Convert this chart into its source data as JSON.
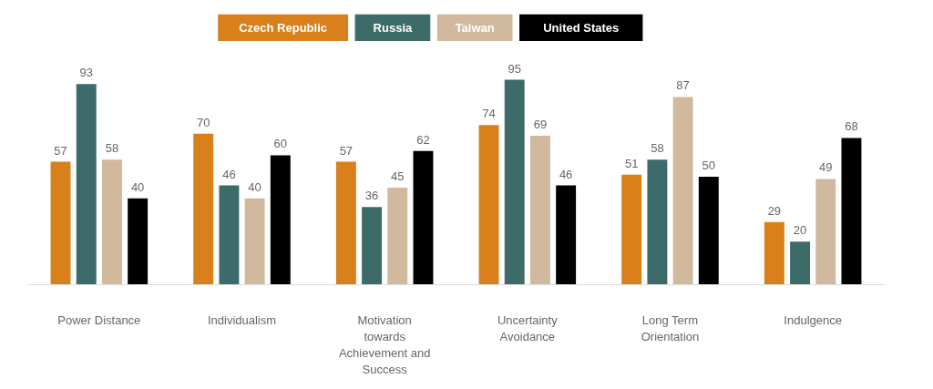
{
  "chart_data": {
    "type": "bar",
    "categories": [
      "Power Distance",
      "Individualism",
      "Motivation towards Achievement and Success",
      "Uncertainty Avoidance",
      "Long Term Orientation",
      "Indulgence"
    ],
    "series": [
      {
        "name": "Czech Republic",
        "color": "#d7801c",
        "values": [
          57,
          70,
          57,
          74,
          51,
          29
        ]
      },
      {
        "name": "Russia",
        "color": "#3d6b6a",
        "values": [
          93,
          46,
          36,
          95,
          58,
          20
        ]
      },
      {
        "name": "Taiwan",
        "color": "#d0b99d",
        "values": [
          58,
          40,
          45,
          69,
          87,
          49
        ]
      },
      {
        "name": "United States",
        "color": "#000000",
        "values": [
          40,
          60,
          62,
          46,
          50,
          68
        ]
      }
    ],
    "tick_labels": "x",
    "grid": false,
    "legend": "top",
    "data_labels": true
  }
}
